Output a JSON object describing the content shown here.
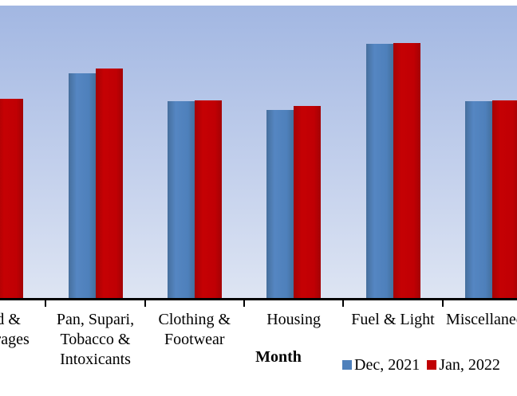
{
  "chart_data": {
    "type": "bar",
    "title": "",
    "xlabel": "Month",
    "ylabel": "",
    "categories": [
      "Food &\nBeverages",
      "Pan, Supari,\nTobacco &\nIntoxicants",
      "Clothing &\nFootwear",
      "Housing",
      "Fuel & Light",
      "Miscellaneous"
    ],
    "series": [
      {
        "name": "Dec, 2021",
        "color": "#4e80bb",
        "values": [
          null,
          282,
          247,
          236,
          319,
          247
        ]
      },
      {
        "name": "Jan, 2022",
        "color": "#c00004",
        "values": [
          250,
          288,
          248,
          241,
          320,
          248
        ]
      }
    ],
    "value_units": "bar height in screen pixels above the x-axis (numeric y-axis is cropped out of the screenshot)",
    "ylim": [
      0,
      367
    ],
    "grid": false,
    "legend_position": "bottom-right",
    "crop_notes": "Chart is cropped: 'Dec, 2021' bar of 'Food & Beverages' and parts of the first and last category labels/bars fall outside the image edges.",
    "colors": {
      "plot_gradient_top": "#a2b7e2",
      "plot_gradient_bottom": "#dee5f3",
      "axis": "#000000",
      "text": "#000000",
      "series_dec_2021": "#4e80bb",
      "series_jan_2022": "#c00004"
    }
  }
}
